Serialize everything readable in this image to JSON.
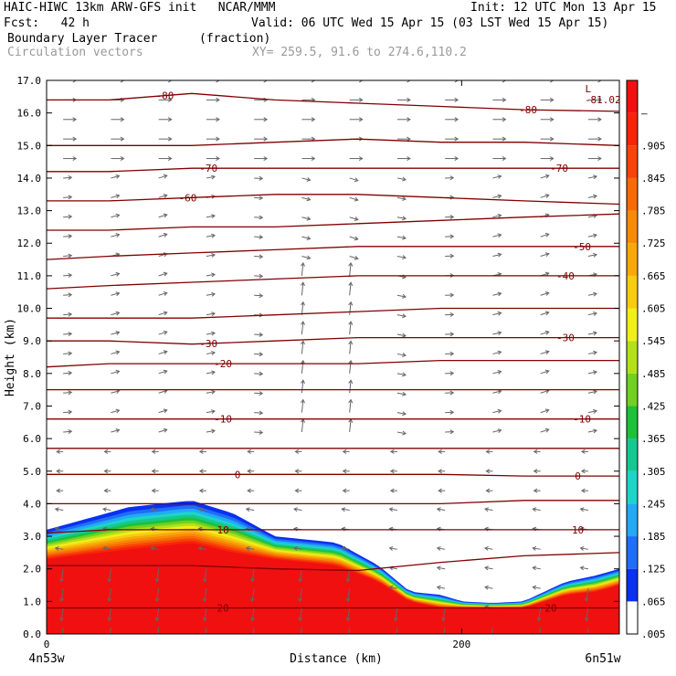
{
  "header": {
    "model_line": "HAIC-HIWC 13km ARW-GFS init   NCAR/MMM",
    "init_line": "Init: 12 UTC Mon 13 Apr 15",
    "fcst_line": "Fcst:   42 h",
    "valid_line": "Valid: 06 UTC Wed 15 Apr 15 (03 LST Wed 15 Apr 15)",
    "field_name": "Boundary Layer Tracer",
    "field_unit": "(fraction)",
    "vector_name": "Circulation vectors",
    "xy_text": "XY= 259.5, 91.6 to 274.6,110.2"
  },
  "chart_data": {
    "type": "heatmap",
    "xlabel": "Distance (km)",
    "ylabel": "Height (km)",
    "xlim": [
      0,
      276
    ],
    "ylim": [
      0,
      17
    ],
    "x_ticks": [
      {
        "v": 0,
        "label": "0"
      },
      {
        "v": 200,
        "label": "200"
      }
    ],
    "x_end_labels": {
      "left": "4n53w",
      "right": "6n51w"
    },
    "y_ticks": [
      "0.0",
      "1.0",
      "2.0",
      "3.0",
      "4.0",
      "5.0",
      "6.0",
      "7.0",
      "8.0",
      "9.0",
      "10.0",
      "11.0",
      "12.0",
      "13.0",
      "14.0",
      "15.0",
      "16.0",
      "17.0"
    ],
    "colorbar": {
      "labels": [
        ".005",
        ".065",
        ".125",
        ".185",
        ".245",
        ".305",
        ".365",
        ".425",
        ".485",
        ".545",
        ".605",
        ".665",
        ".725",
        ".785",
        ".845",
        ".905",
        "–"
      ],
      "colors": [
        "#ffffff",
        "#0a30f0",
        "#1e6ef8",
        "#22aaf4",
        "#1ed4c8",
        "#16c890",
        "#1cc23a",
        "#72d020",
        "#b2e01a",
        "#f0f018",
        "#f8cc10",
        "#f8a80a",
        "#f88a08",
        "#f86a06",
        "#f84406",
        "#f82408",
        "#f01010"
      ]
    },
    "pbl_profile": {
      "x_km": [
        0,
        40,
        70,
        90,
        110,
        140,
        160,
        175,
        190,
        200,
        215,
        230,
        250,
        265,
        276
      ],
      "top_km": [
        3.2,
        3.9,
        4.1,
        3.7,
        3.0,
        2.8,
        2.1,
        1.3,
        1.2,
        1.0,
        0.95,
        1.0,
        1.6,
        1.8,
        2.0
      ],
      "mixed_top_km": [
        2.3,
        2.6,
        2.8,
        2.5,
        2.3,
        2.1,
        1.6,
        1.0,
        0.8,
        0.8,
        0.8,
        0.8,
        1.2,
        1.3,
        1.5
      ],
      "max_value": 0.99
    },
    "temperature_contours": {
      "x_km": [
        0,
        30,
        70,
        110,
        150,
        190,
        230,
        276
      ],
      "lines": [
        {
          "heights_km": [
            16.4,
            16.4,
            16.6,
            16.4,
            16.3,
            16.2,
            16.1,
            16.05
          ],
          "label": "-80",
          "label_x_km": [
            57,
            232
          ]
        },
        {
          "heights_km": [
            15.0,
            15.0,
            15.0,
            15.1,
            15.2,
            15.1,
            15.1,
            15.0
          ],
          "label": "",
          "label_x_km": []
        },
        {
          "heights_km": [
            14.2,
            14.2,
            14.3,
            14.3,
            14.3,
            14.3,
            14.3,
            14.3
          ],
          "label": "-70",
          "label_x_km": [
            78,
            247
          ]
        },
        {
          "heights_km": [
            13.3,
            13.3,
            13.4,
            13.5,
            13.5,
            13.4,
            13.3,
            13.2
          ],
          "label": "-60",
          "label_x_km": [
            68
          ]
        },
        {
          "heights_km": [
            12.4,
            12.4,
            12.5,
            12.5,
            12.6,
            12.7,
            12.8,
            12.9
          ],
          "label": "",
          "label_x_km": []
        },
        {
          "heights_km": [
            11.5,
            11.6,
            11.7,
            11.8,
            11.9,
            11.9,
            11.9,
            11.9
          ],
          "label": "-50",
          "label_x_km": [
            258
          ]
        },
        {
          "heights_km": [
            10.6,
            10.7,
            10.8,
            10.9,
            11.0,
            11.0,
            11.0,
            11.0
          ],
          "label": "-40",
          "label_x_km": [
            250
          ]
        },
        {
          "heights_km": [
            9.7,
            9.7,
            9.7,
            9.8,
            9.9,
            10.0,
            10.0,
            10.0
          ],
          "label": "",
          "label_x_km": []
        },
        {
          "heights_km": [
            9.0,
            9.0,
            8.9,
            9.0,
            9.1,
            9.1,
            9.1,
            9.1
          ],
          "label": "-30",
          "label_x_km": [
            78,
            250
          ]
        },
        {
          "heights_km": [
            8.2,
            8.3,
            8.3,
            8.3,
            8.3,
            8.4,
            8.4,
            8.4
          ],
          "label": "-20",
          "label_x_km": [
            85
          ]
        },
        {
          "heights_km": [
            7.5,
            7.5,
            7.5,
            7.5,
            7.5,
            7.5,
            7.5,
            7.5
          ],
          "label": "",
          "label_x_km": []
        },
        {
          "heights_km": [
            6.6,
            6.6,
            6.6,
            6.6,
            6.6,
            6.6,
            6.6,
            6.6
          ],
          "label": "-10",
          "label_x_km": [
            85,
            258
          ]
        },
        {
          "heights_km": [
            5.7,
            5.7,
            5.7,
            5.7,
            5.7,
            5.7,
            5.7,
            5.7
          ],
          "label": "",
          "label_x_km": []
        },
        {
          "heights_km": [
            4.9,
            4.9,
            4.9,
            4.9,
            4.9,
            4.9,
            4.85,
            4.85
          ],
          "label": "0",
          "label_x_km": [
            92,
            256
          ]
        },
        {
          "heights_km": [
            4.0,
            4.0,
            4.0,
            4.0,
            4.0,
            4.0,
            4.1,
            4.1
          ],
          "label": "",
          "label_x_km": []
        },
        {
          "heights_km": [
            3.1,
            3.2,
            3.2,
            3.2,
            3.2,
            3.2,
            3.2,
            3.2
          ],
          "label": "10",
          "label_x_km": [
            85,
            256
          ]
        },
        {
          "heights_km": [
            2.1,
            2.1,
            2.1,
            2.0,
            1.95,
            2.2,
            2.4,
            2.5
          ],
          "label": "",
          "label_x_km": []
        },
        {
          "heights_km": [
            0.8,
            0.8,
            0.8,
            0.8,
            0.8,
            0.8,
            0.8,
            0.8
          ],
          "label": "20",
          "label_x_km": [
            85,
            243
          ]
        }
      ],
      "extra_label": {
        "text": "-81.02",
        "letter": "L",
        "x_km": 268
      }
    },
    "vectors": {
      "description_label": "Circulation vectors"
    }
  }
}
